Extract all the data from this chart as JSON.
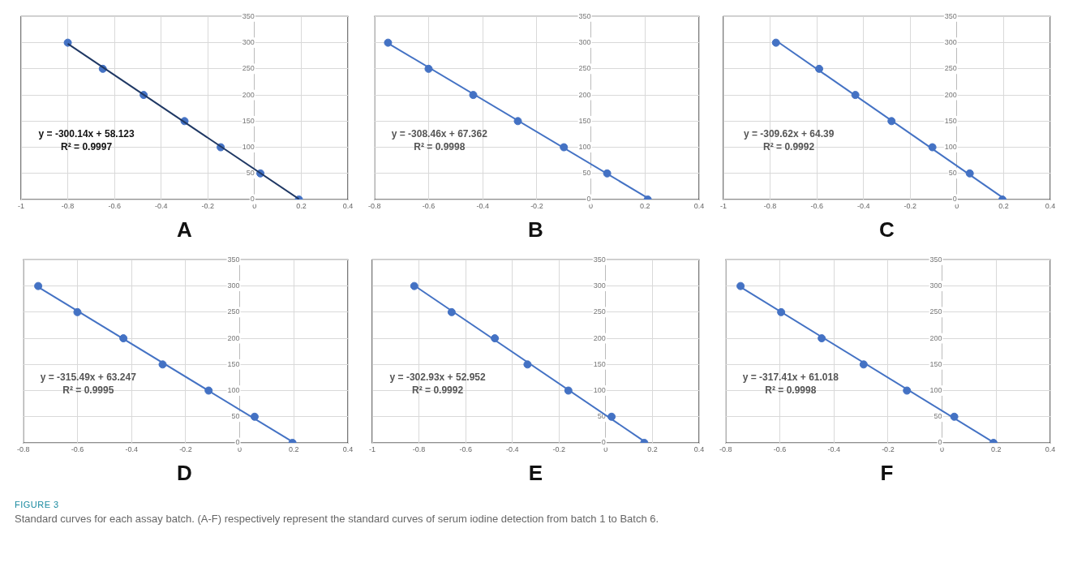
{
  "chart_data": [
    {
      "type": "scatter",
      "title": "A",
      "xlim": [
        -1,
        0.4
      ],
      "xticks": [
        -1,
        -0.8,
        -0.6,
        -0.4,
        -0.2,
        0,
        0.2,
        0.4
      ],
      "ylim": [
        0,
        350
      ],
      "yticks": [
        0,
        50,
        100,
        150,
        200,
        250,
        300,
        350
      ],
      "grid": true,
      "marker": "circle",
      "annotations": [
        "y = -300.14x + 58.123",
        "R² = 0.9997"
      ],
      "series": [
        {
          "type": "scatter",
          "color": "#4472c4",
          "x": [
            -0.8,
            -0.65,
            -0.475,
            -0.3,
            -0.145,
            0.025,
            0.19
          ],
          "values": [
            300,
            250,
            200,
            150,
            100,
            50,
            0
          ]
        },
        {
          "type": "line",
          "color": "#1f3864",
          "marker": "none",
          "line_style": "solid",
          "x": [
            -0.8,
            0.19
          ],
          "values": [
            298,
            1
          ]
        }
      ]
    },
    {
      "type": "scatter",
      "title": "B",
      "xlim": [
        -0.8,
        0.4
      ],
      "xticks": [
        -0.8,
        -0.6,
        -0.4,
        -0.2,
        0,
        0.2,
        0.4
      ],
      "ylim": [
        0,
        350
      ],
      "yticks": [
        0,
        50,
        100,
        150,
        200,
        250,
        300,
        350
      ],
      "grid": true,
      "marker": "circle",
      "annotations": [
        "y = -308.46x + 67.362",
        "R² = 0.9998"
      ],
      "series": [
        {
          "type": "scatter",
          "color": "#4472c4",
          "x": [
            -0.75,
            -0.6,
            -0.435,
            -0.27,
            -0.1,
            0.06,
            0.21
          ],
          "values": [
            300,
            250,
            200,
            150,
            100,
            50,
            0
          ]
        },
        {
          "type": "line",
          "color": "#4472c4",
          "marker": "none",
          "line_style": "solid",
          "x": [
            -0.75,
            0.21
          ],
          "values": [
            299,
            3
          ]
        }
      ]
    },
    {
      "type": "scatter",
      "title": "C",
      "xlim": [
        -1,
        0.4
      ],
      "xticks": [
        -1,
        -0.8,
        -0.6,
        -0.4,
        -0.2,
        0,
        0.2,
        0.4
      ],
      "ylim": [
        0,
        350
      ],
      "yticks": [
        0,
        50,
        100,
        150,
        200,
        250,
        300,
        350
      ],
      "grid": true,
      "marker": "circle",
      "annotations": [
        "y = -309.62x + 64.39",
        "R² = 0.9992"
      ],
      "series": [
        {
          "type": "scatter",
          "color": "#4472c4",
          "x": [
            -0.775,
            -0.59,
            -0.435,
            -0.28,
            -0.105,
            0.055,
            0.195
          ],
          "values": [
            300,
            250,
            200,
            150,
            100,
            50,
            0
          ]
        },
        {
          "type": "line",
          "color": "#4472c4",
          "marker": "none",
          "line_style": "solid",
          "x": [
            -0.775,
            0.195
          ],
          "values": [
            304,
            4
          ]
        }
      ]
    },
    {
      "type": "scatter",
      "title": "D",
      "xlim": [
        -0.8,
        0.4
      ],
      "xticks": [
        -0.8,
        -0.6,
        -0.4,
        -0.2,
        0,
        0.2,
        0.4
      ],
      "ylim": [
        0,
        350
      ],
      "yticks": [
        0,
        50,
        100,
        150,
        200,
        250,
        300,
        350
      ],
      "grid": true,
      "marker": "circle",
      "annotations": [
        "y = -315.49x + 63.247",
        "R² = 0.9995"
      ],
      "series": [
        {
          "type": "scatter",
          "color": "#4472c4",
          "x": [
            -0.745,
            -0.6,
            -0.43,
            -0.285,
            -0.115,
            0.055,
            0.195
          ],
          "values": [
            300,
            250,
            200,
            150,
            100,
            50,
            0
          ]
        },
        {
          "type": "line",
          "color": "#4472c4",
          "marker": "none",
          "line_style": "solid",
          "x": [
            -0.745,
            0.195
          ],
          "values": [
            298,
            2
          ]
        }
      ]
    },
    {
      "type": "scatter",
      "title": "E",
      "xlim": [
        -1,
        0.4
      ],
      "xticks": [
        -1,
        -0.8,
        -0.6,
        -0.4,
        -0.2,
        0,
        0.2,
        0.4
      ],
      "ylim": [
        0,
        350
      ],
      "yticks": [
        0,
        50,
        100,
        150,
        200,
        250,
        300,
        350
      ],
      "grid": true,
      "marker": "circle",
      "annotations": [
        "y = -302.93x + 52.952",
        "R² = 0.9992"
      ],
      "series": [
        {
          "type": "scatter",
          "color": "#4472c4",
          "x": [
            -0.82,
            -0.66,
            -0.475,
            -0.335,
            -0.16,
            0.025,
            0.165
          ],
          "values": [
            300,
            250,
            200,
            150,
            100,
            50,
            0
          ]
        },
        {
          "type": "line",
          "color": "#4472c4",
          "marker": "none",
          "line_style": "solid",
          "x": [
            -0.82,
            0.165
          ],
          "values": [
            301,
            3
          ]
        }
      ]
    },
    {
      "type": "scatter",
      "title": "F",
      "xlim": [
        -0.8,
        0.4
      ],
      "xticks": [
        -0.8,
        -0.6,
        -0.4,
        -0.2,
        0,
        0.2,
        0.4
      ],
      "ylim": [
        0,
        350
      ],
      "yticks": [
        0,
        50,
        100,
        150,
        200,
        250,
        300,
        350
      ],
      "grid": true,
      "marker": "circle",
      "annotations": [
        "y = -317.41x + 61.018",
        "R² = 0.9998"
      ],
      "series": [
        {
          "type": "scatter",
          "color": "#4472c4",
          "x": [
            -0.745,
            -0.595,
            -0.445,
            -0.29,
            -0.13,
            0.045,
            0.19
          ],
          "values": [
            300,
            250,
            200,
            150,
            100,
            50,
            0
          ]
        },
        {
          "type": "line",
          "color": "#4472c4",
          "marker": "none",
          "line_style": "solid",
          "x": [
            -0.745,
            0.19
          ],
          "values": [
            298,
            1
          ]
        }
      ]
    },
    {
      "type": "other",
      "title": "FIGURE 3",
      "annotations": [
        "Standard curves for each assay batch. (A-F) respectively represent the standard curves of serum iodine detection from batch 1 to Batch 6."
      ]
    }
  ]
}
